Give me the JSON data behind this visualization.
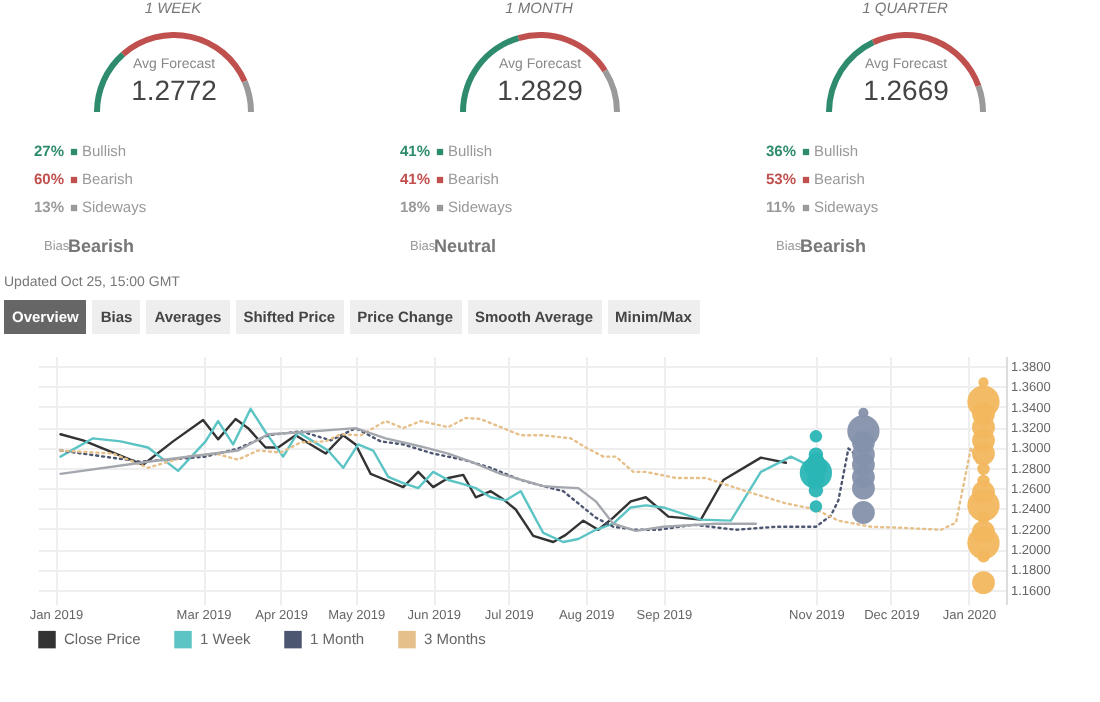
{
  "chart_data": [
    {
      "type": "donut",
      "title": "1 WEEK",
      "categories": [
        "Bullish",
        "Bearish",
        "Sideways"
      ],
      "values": [
        27,
        60,
        13
      ],
      "colors": [
        "#2e8b6e",
        "#c0504d",
        "#9a9a9a"
      ],
      "value_labels": [
        "27%",
        "60%",
        "13%"
      ],
      "legend": "bottom",
      "annotations": [
        "Avg Forecast",
        "1.2772",
        "Bias",
        "Bearish"
      ]
    },
    {
      "type": "donut",
      "title": "1 MONTH",
      "categories": [
        "Bullish",
        "Bearish",
        "Sideways"
      ],
      "values": [
        41,
        41,
        18
      ],
      "colors": [
        "#2e8b6e",
        "#c0504d",
        "#9a9a9a"
      ],
      "value_labels": [
        "41%",
        "41%",
        "18%"
      ],
      "legend": "bottom",
      "annotations": [
        "Avg Forecast",
        "1.2829",
        "Bias",
        "Neutral"
      ]
    },
    {
      "type": "donut",
      "title": "1 QUARTER",
      "categories": [
        "Bullish",
        "Bearish",
        "Sideways"
      ],
      "values": [
        36,
        53,
        11
      ],
      "colors": [
        "#2e8b6e",
        "#c0504d",
        "#9a9a9a"
      ],
      "value_labels": [
        "36%",
        "53%",
        "11%"
      ],
      "legend": "bottom",
      "annotations": [
        "Avg Forecast",
        "1.2669",
        "Bias",
        "Bearish"
      ]
    },
    {
      "type": "other",
      "title": "Updated Oct 25, 15:00 GMT",
      "annotations": [
        "Overview",
        "Bias",
        "Averages",
        "Shifted Price",
        "Price Change",
        "Smooth Average",
        "Minim/Max"
      ]
    },
    {
      "type": "line",
      "xlim": [
        "2018-12-25",
        "2020-01-16"
      ],
      "ylim": [
        1.146,
        1.39
      ],
      "xticks": [
        {
          "value": "2019-01-01",
          "label": "Jan 2019"
        },
        {
          "value": "2019-03-01",
          "label": "Mar 2019"
        },
        {
          "value": "2019-04-01",
          "label": "Apr 2019"
        },
        {
          "value": "2019-05-01",
          "label": "May 2019"
        },
        {
          "value": "2019-06-01",
          "label": "Jun 2019"
        },
        {
          "value": "2019-07-01",
          "label": "Jul 2019"
        },
        {
          "value": "2019-08-01",
          "label": "Aug 2019"
        },
        {
          "value": "2019-09-01",
          "label": "Sep 2019"
        },
        {
          "value": "2019-11-01",
          "label": "Nov 2019"
        },
        {
          "value": "2019-12-01",
          "label": "Dec 2019"
        },
        {
          "value": "2020-01-01",
          "label": "Jan 2020"
        }
      ],
      "yticks": [
        {
          "value": 1.16,
          "label": "1.1600"
        },
        {
          "value": 1.18,
          "label": "1.1800"
        },
        {
          "value": 1.2,
          "label": "1.2000"
        },
        {
          "value": 1.22,
          "label": "1.2200"
        },
        {
          "value": 1.24,
          "label": "1.2400"
        },
        {
          "value": 1.26,
          "label": "1.2600"
        },
        {
          "value": 1.28,
          "label": "1.2800"
        },
        {
          "value": 1.3,
          "label": "1.3000"
        },
        {
          "value": 1.32,
          "label": "1.3200"
        },
        {
          "value": 1.34,
          "label": "1.3400"
        },
        {
          "value": 1.36,
          "label": "1.3600"
        },
        {
          "value": 1.38,
          "label": "1.3800"
        }
      ],
      "grid": true,
      "legend": "bottom",
      "series": [
        {
          "name": "Close Price",
          "color": "#333333",
          "line_style": "solid",
          "x": [
            "2019-01-03",
            "2019-01-12",
            "2019-01-25",
            "2019-02-05",
            "2019-02-17",
            "2019-03-01",
            "2019-03-07",
            "2019-03-14",
            "2019-03-19",
            "2019-03-26",
            "2019-03-31",
            "2019-04-07",
            "2019-04-13",
            "2019-04-19",
            "2019-04-26",
            "2019-05-01",
            "2019-05-07",
            "2019-05-13",
            "2019-05-20",
            "2019-05-26",
            "2019-06-01",
            "2019-06-07",
            "2019-06-13",
            "2019-06-18",
            "2019-06-24",
            "2019-06-29",
            "2019-07-04",
            "2019-07-11",
            "2019-07-19",
            "2019-07-24",
            "2019-07-31",
            "2019-08-06",
            "2019-08-12",
            "2019-08-19",
            "2019-08-25",
            "2019-09-03",
            "2019-09-16",
            "2019-09-25",
            "2019-10-10",
            "2019-10-20"
          ],
          "values": [
            1.313,
            1.307,
            1.294,
            1.283,
            1.306,
            1.327,
            1.308,
            1.328,
            1.319,
            1.3,
            1.3,
            1.312,
            1.303,
            1.294,
            1.312,
            1.303,
            1.274,
            1.268,
            1.261,
            1.276,
            1.261,
            1.27,
            1.273,
            1.251,
            1.257,
            1.249,
            1.239,
            1.213,
            1.207,
            1.214,
            1.228,
            1.219,
            1.231,
            1.247,
            1.251,
            1.232,
            1.229,
            1.268,
            1.29,
            1.285
          ]
        },
        {
          "name": "1 Week",
          "color": "#5cc4c4",
          "line_style": "solid",
          "x": [
            "2019-01-03",
            "2019-01-16",
            "2019-01-27",
            "2019-02-07",
            "2019-02-19",
            "2019-03-02",
            "2019-03-07",
            "2019-03-13",
            "2019-03-20",
            "2019-03-26",
            "2019-04-02",
            "2019-04-08",
            "2019-04-14",
            "2019-04-20",
            "2019-04-26",
            "2019-05-02",
            "2019-05-08",
            "2019-05-14",
            "2019-05-20",
            "2019-05-26",
            "2019-06-01",
            "2019-06-07",
            "2019-06-13",
            "2019-06-18",
            "2019-06-24",
            "2019-06-30",
            "2019-07-06",
            "2019-07-13",
            "2019-07-15",
            "2019-07-23",
            "2019-07-29",
            "2019-08-05",
            "2019-08-12",
            "2019-08-19",
            "2019-08-25",
            "2019-09-01",
            "2019-09-16",
            "2019-09-28",
            "2019-10-10",
            "2019-10-22",
            "2019-10-31"
          ],
          "values": [
            1.291,
            1.309,
            1.306,
            1.3,
            1.277,
            1.306,
            1.326,
            1.303,
            1.338,
            1.315,
            1.291,
            1.315,
            1.306,
            1.297,
            1.28,
            1.303,
            1.297,
            1.271,
            1.265,
            1.26,
            1.276,
            1.268,
            1.264,
            1.26,
            1.251,
            1.248,
            1.257,
            1.225,
            1.216,
            1.207,
            1.21,
            1.219,
            1.225,
            1.241,
            1.243,
            1.241,
            1.229,
            1.228,
            1.276,
            1.291,
            1.28
          ]
        },
        {
          "name": "1 Month",
          "color": "#4d5670",
          "line_style": "dotted",
          "x": [
            "2019-01-03",
            "2019-02-04",
            "2019-03-02",
            "2019-03-15",
            "2019-03-27",
            "2019-04-09",
            "2019-04-21",
            "2019-05-01",
            "2019-05-11",
            "2019-05-20",
            "2019-06-01",
            "2019-06-13",
            "2019-06-24",
            "2019-07-06",
            "2019-07-15",
            "2019-07-23",
            "2019-07-29",
            "2019-08-05",
            "2019-08-12",
            "2019-08-21",
            "2019-08-30",
            "2019-09-13",
            "2019-09-30",
            "2019-10-16",
            "2019-11-01",
            "2019-11-07",
            "2019-11-10",
            "2019-11-14",
            "2019-11-20"
          ],
          "values": [
            1.297,
            1.286,
            1.291,
            1.299,
            1.312,
            1.316,
            1.307,
            1.319,
            1.306,
            1.303,
            1.294,
            1.288,
            1.28,
            1.268,
            1.262,
            1.257,
            1.245,
            1.231,
            1.222,
            1.219,
            1.219,
            1.224,
            1.219,
            1.222,
            1.222,
            1.233,
            1.248,
            1.299,
            1.286
          ]
        },
        {
          "name": "3 Months",
          "color": "#e6c08a",
          "line_style": "dotted",
          "x": [
            "2019-01-03",
            "2019-01-24",
            "2019-02-07",
            "2019-02-22",
            "2019-03-06",
            "2019-03-15",
            "2019-03-23",
            "2019-04-01",
            "2019-04-09",
            "2019-04-19",
            "2019-04-25",
            "2019-05-03",
            "2019-05-13",
            "2019-05-20",
            "2019-05-27",
            "2019-06-07",
            "2019-06-14",
            "2019-06-20",
            "2019-06-28",
            "2019-07-06",
            "2019-07-15",
            "2019-07-26",
            "2019-08-01",
            "2019-08-08",
            "2019-08-13",
            "2019-08-20",
            "2019-08-25",
            "2019-09-06",
            "2019-09-18",
            "2019-10-04",
            "2019-10-20",
            "2019-11-01",
            "2019-11-10",
            "2019-11-23",
            "2019-12-05",
            "2019-12-21",
            "2019-12-27",
            "2020-01-02",
            "2020-01-07"
          ],
          "values": [
            1.297,
            1.294,
            1.28,
            1.291,
            1.294,
            1.288,
            1.297,
            1.295,
            1.305,
            1.306,
            1.313,
            1.312,
            1.326,
            1.319,
            1.326,
            1.32,
            1.329,
            1.328,
            1.32,
            1.312,
            1.312,
            1.309,
            1.3,
            1.291,
            1.291,
            1.276,
            1.276,
            1.27,
            1.27,
            1.257,
            1.245,
            1.239,
            1.228,
            1.222,
            1.221,
            1.219,
            1.226,
            1.3,
            1.271
          ]
        },
        {
          "color": "#a4a8ae",
          "line_style": "solid",
          "x": [
            "2019-01-03",
            "2019-02-07",
            "2019-03-15",
            "2019-03-27",
            "2019-04-09",
            "2019-05-01",
            "2019-05-13",
            "2019-05-27",
            "2019-06-07",
            "2019-06-16",
            "2019-06-28",
            "2019-07-15",
            "2019-07-21",
            "2019-07-29",
            "2019-08-05",
            "2019-08-12",
            "2019-08-21",
            "2019-09-01",
            "2019-09-22",
            "2019-10-08"
          ],
          "values": [
            1.274,
            1.286,
            1.297,
            1.313,
            1.315,
            1.319,
            1.309,
            1.301,
            1.294,
            1.286,
            1.274,
            1.262,
            1.261,
            1.26,
            1.247,
            1.225,
            1.218,
            1.222,
            1.225,
            1.225
          ]
        },
        {
          "type": "bubble",
          "color": "#2bb5b5",
          "x": [
            "2019-11-01",
            "2019-11-01",
            "2019-11-01",
            "2019-11-01",
            "2019-11-01",
            "2019-11-01",
            "2019-11-01",
            "2019-11-01"
          ],
          "values": [
            1.311,
            1.293,
            1.286,
            1.28,
            1.275,
            1.268,
            1.258,
            1.242
          ],
          "sizes": [
            0.15,
            0.2,
            0.3,
            0.5,
            1,
            0.3,
            0.2,
            0.15
          ]
        },
        {
          "type": "bubble",
          "color": "#8591ab",
          "x": [
            "2019-11-20",
            "2019-11-20",
            "2019-11-20",
            "2019-11-20",
            "2019-11-20",
            "2019-11-20",
            "2019-11-20",
            "2019-11-20"
          ],
          "values": [
            1.334,
            1.316,
            1.305,
            1.293,
            1.283,
            1.271,
            1.26,
            1.236
          ],
          "sizes": [
            0.1,
            1,
            0.5,
            0.5,
            0.5,
            0.5,
            0.5,
            0.5
          ]
        },
        {
          "type": "bubble",
          "color": "#f2b75e",
          "x": [
            "2020-01-07",
            "2020-01-07",
            "2020-01-07",
            "2020-01-07",
            "2020-01-07",
            "2020-01-07",
            "2020-01-07",
            "2020-01-07",
            "2020-01-07",
            "2020-01-07",
            "2020-01-07",
            "2020-01-07",
            "2020-01-07",
            "2020-01-07",
            "2020-01-07"
          ],
          "values": [
            1.364,
            1.345,
            1.333,
            1.32,
            1.307,
            1.294,
            1.279,
            1.267,
            1.256,
            1.243,
            1.231,
            1.217,
            1.206,
            1.193,
            1.167
          ],
          "sizes": [
            0.1,
            1,
            0.5,
            0.5,
            0.5,
            0.5,
            0.15,
            0.15,
            0.5,
            1,
            0.15,
            0.5,
            1,
            0.15,
            0.5
          ]
        }
      ]
    }
  ]
}
